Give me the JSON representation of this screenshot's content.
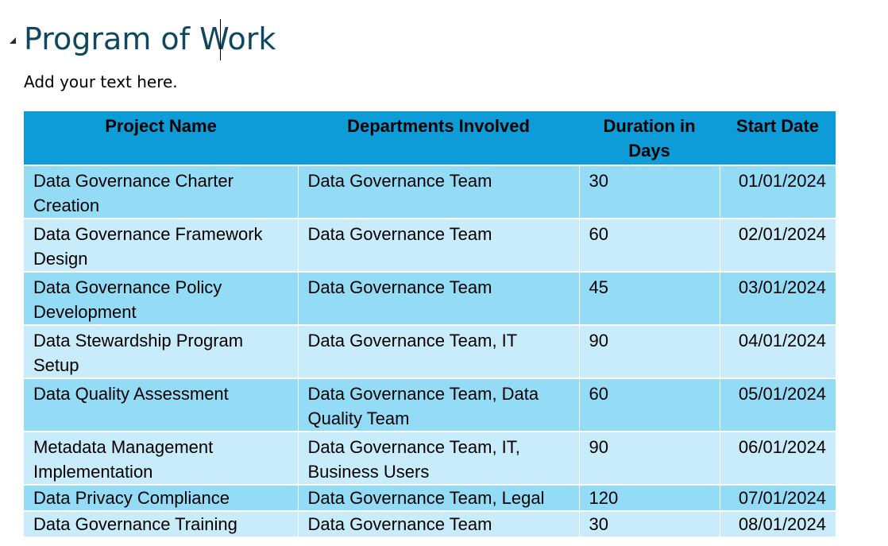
{
  "document": {
    "heading": "Program of Work",
    "body_text": "Add your text here."
  },
  "table": {
    "headers": {
      "project_name": "Project Name",
      "departments": "Departments Involved",
      "duration": "Duration in Days",
      "start_date": "Start Date"
    },
    "rows": [
      {
        "project": "Data Governance Charter Creation",
        "departments": "Data Governance Team",
        "duration": "30",
        "start": "01/01/2024"
      },
      {
        "project": "Data Governance Framework Design",
        "departments": "Data Governance Team",
        "duration": "60",
        "start": "02/01/2024"
      },
      {
        "project": "Data Governance Policy Development",
        "departments": "Data Governance Team",
        "duration": "45",
        "start": "03/01/2024"
      },
      {
        "project": "Data Stewardship Program Setup",
        "departments": "Data Governance Team, IT",
        "duration": "90",
        "start": "04/01/2024"
      },
      {
        "project": "Data Quality Assessment",
        "departments": "Data Governance Team, Data Quality Team",
        "duration": "60",
        "start": "05/01/2024"
      },
      {
        "project": "Metadata Management Implementation",
        "departments": "Data Governance Team, IT, Business Users",
        "duration": "90",
        "start": "06/01/2024"
      },
      {
        "project": "Data Privacy Compliance",
        "departments": "Data Governance Team, Legal",
        "duration": "120",
        "start": "07/01/2024"
      },
      {
        "project": "Data Governance Training",
        "departments": "Data Governance Team",
        "duration": "30",
        "start": "08/01/2024"
      }
    ]
  },
  "colors": {
    "heading": "#0f4761",
    "header_fill": "#0e9cd8",
    "row_dark": "#94dcf6",
    "row_light": "#c9ecfa"
  }
}
